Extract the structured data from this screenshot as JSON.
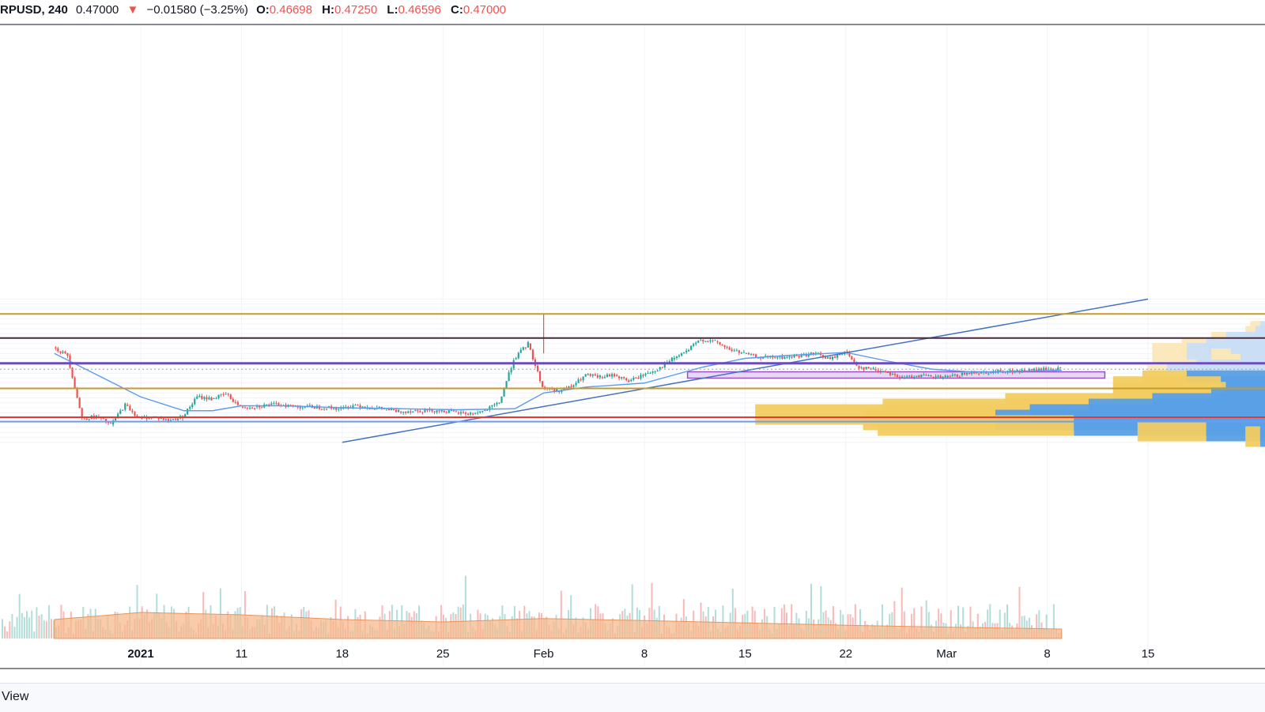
{
  "header": {
    "symbol": "RPUSD, 240",
    "last": "0.47000",
    "change_arrow": "▼",
    "change": "−0.01580 (−3.25%)",
    "open_label": "O:",
    "open": "0.46698",
    "high_label": "H:",
    "high": "0.47250",
    "low_label": "L:",
    "low": "0.46596",
    "close_label": "C:",
    "close": "0.47000"
  },
  "footer": {
    "text": "View"
  },
  "colors": {
    "up": "#26a69a",
    "down": "#ef5350",
    "ma": "#5b9cf0",
    "trendline": "#4472c4",
    "gold": "#c49a2c",
    "maroon": "#4a2a3a",
    "purple": "#6a4cc0",
    "red_line": "#e53935",
    "blue_line": "#6c9cf0"
  },
  "chart_data": {
    "type": "candlestick",
    "x_tick_labels": [
      "2021",
      "11",
      "18",
      "25",
      "Feb",
      "8",
      "15",
      "22",
      "Mar",
      "8",
      "15"
    ],
    "x_tick_dates": [
      "2021-01-04",
      "2021-01-11",
      "2021-01-18",
      "2021-01-25",
      "2021-02-01",
      "2021-02-08",
      "2021-02-15",
      "2021-02-22",
      "2021-03-01",
      "2021-03-08",
      "2021-03-15"
    ],
    "price_path": [
      [
        "2020-12-29",
        0.58
      ],
      [
        "2020-12-30",
        0.54
      ],
      [
        "2020-12-31",
        0.22
      ],
      [
        "2021-01-01",
        0.23
      ],
      [
        "2021-01-02",
        0.19
      ],
      [
        "2021-01-03",
        0.29
      ],
      [
        "2021-01-04",
        0.22
      ],
      [
        "2021-01-05",
        0.23
      ],
      [
        "2021-01-06",
        0.21
      ],
      [
        "2021-01-07",
        0.23
      ],
      [
        "2021-01-08",
        0.33
      ],
      [
        "2021-01-09",
        0.32
      ],
      [
        "2021-01-10",
        0.345
      ],
      [
        "2021-01-11",
        0.28
      ],
      [
        "2021-01-12",
        0.28
      ],
      [
        "2021-01-13",
        0.29
      ],
      [
        "2021-01-14",
        0.29
      ],
      [
        "2021-01-15",
        0.28
      ],
      [
        "2021-01-16",
        0.28
      ],
      [
        "2021-01-17",
        0.275
      ],
      [
        "2021-01-18",
        0.27
      ],
      [
        "2021-01-19",
        0.29
      ],
      [
        "2021-01-20",
        0.275
      ],
      [
        "2021-01-21",
        0.27
      ],
      [
        "2021-01-22",
        0.255
      ],
      [
        "2021-01-23",
        0.26
      ],
      [
        "2021-01-24",
        0.262
      ],
      [
        "2021-01-25",
        0.26
      ],
      [
        "2021-01-26",
        0.25
      ],
      [
        "2021-01-27",
        0.245
      ],
      [
        "2021-01-28",
        0.26
      ],
      [
        "2021-01-29",
        0.3
      ],
      [
        "2021-01-30",
        0.52
      ],
      [
        "2021-01-31",
        0.6
      ],
      [
        "2021-02-01",
        0.38
      ],
      [
        "2021-02-02",
        0.36
      ],
      [
        "2021-02-03",
        0.38
      ],
      [
        "2021-02-04",
        0.44
      ],
      [
        "2021-02-05",
        0.43
      ],
      [
        "2021-02-06",
        0.44
      ],
      [
        "2021-02-07",
        0.41
      ],
      [
        "2021-02-08",
        0.44
      ],
      [
        "2021-02-09",
        0.47
      ],
      [
        "2021-02-10",
        0.52
      ],
      [
        "2021-02-11",
        0.56
      ],
      [
        "2021-02-12",
        0.62
      ],
      [
        "2021-02-13",
        0.61
      ],
      [
        "2021-02-14",
        0.57
      ],
      [
        "2021-02-15",
        0.55
      ],
      [
        "2021-02-16",
        0.53
      ],
      [
        "2021-02-17",
        0.53
      ],
      [
        "2021-02-18",
        0.53
      ],
      [
        "2021-02-19",
        0.54
      ],
      [
        "2021-02-20",
        0.55
      ],
      [
        "2021-02-21",
        0.52
      ],
      [
        "2021-02-22",
        0.56
      ],
      [
        "2021-02-23",
        0.48
      ],
      [
        "2021-02-24",
        0.47
      ],
      [
        "2021-02-25",
        0.455
      ],
      [
        "2021-02-26",
        0.425
      ],
      [
        "2021-02-27",
        0.44
      ],
      [
        "2021-02-28",
        0.43
      ],
      [
        "2021-03-01",
        0.43
      ],
      [
        "2021-03-02",
        0.44
      ],
      [
        "2021-03-03",
        0.455
      ],
      [
        "2021-03-04",
        0.455
      ],
      [
        "2021-03-05",
        0.46
      ],
      [
        "2021-03-06",
        0.46
      ],
      [
        "2021-03-07",
        0.465
      ],
      [
        "2021-03-08",
        0.47
      ],
      [
        "2021-03-09",
        0.47
      ]
    ],
    "spike_high": [
      "2021-02-01",
      0.75
    ],
    "moving_average_path": [
      [
        "2020-12-29",
        0.55
      ],
      [
        "2021-01-01",
        0.44
      ],
      [
        "2021-01-04",
        0.33
      ],
      [
        "2021-01-07",
        0.26
      ],
      [
        "2021-01-09",
        0.26
      ],
      [
        "2021-01-11",
        0.285
      ],
      [
        "2021-01-14",
        0.285
      ],
      [
        "2021-01-18",
        0.275
      ],
      [
        "2021-01-22",
        0.27
      ],
      [
        "2021-01-26",
        0.265
      ],
      [
        "2021-01-30",
        0.27
      ],
      [
        "2021-02-01",
        0.35
      ],
      [
        "2021-02-04",
        0.38
      ],
      [
        "2021-02-08",
        0.4
      ],
      [
        "2021-02-12",
        0.48
      ],
      [
        "2021-02-15",
        0.525
      ],
      [
        "2021-02-18",
        0.54
      ],
      [
        "2021-02-22",
        0.555
      ],
      [
        "2021-02-25",
        0.51
      ],
      [
        "2021-02-28",
        0.47
      ],
      [
        "2021-03-03",
        0.455
      ],
      [
        "2021-03-06",
        0.46
      ],
      [
        "2021-03-09",
        0.465
      ]
    ],
    "volume_ma_path": [
      [
        "2020-12-29",
        0.4
      ],
      [
        "2021-01-04",
        0.55
      ],
      [
        "2021-01-11",
        0.5
      ],
      [
        "2021-01-18",
        0.4
      ],
      [
        "2021-01-25",
        0.35
      ],
      [
        "2021-02-01",
        0.42
      ],
      [
        "2021-02-08",
        0.38
      ],
      [
        "2021-02-15",
        0.33
      ],
      [
        "2021-02-22",
        0.28
      ],
      [
        "2021-03-01",
        0.24
      ],
      [
        "2021-03-09",
        0.2
      ]
    ],
    "trendline": {
      "start": [
        "2021-01-18",
        0.1
      ],
      "end": [
        "2021-03-15",
        0.825
      ]
    },
    "horizontal_levels": [
      {
        "price": 0.75,
        "color": "gold"
      },
      {
        "price": 0.628,
        "color": "maroon"
      },
      {
        "price": 0.5,
        "color": "purple"
      },
      {
        "price": 0.373,
        "color": "gold"
      },
      {
        "price": 0.227,
        "color": "red_line"
      },
      {
        "price": 0.205,
        "color": "blue_line"
      }
    ],
    "current_price": 0.47,
    "zone": {
      "from": "2021-02-11",
      "to": "2021-03-12",
      "top": 0.457,
      "bottom": 0.425
    },
    "volume_profile": [
      {
        "price": 0.66,
        "up": 0.02,
        "down": 0.01
      },
      {
        "price": 0.635,
        "up": 0.02,
        "down": 0.02
      },
      {
        "price": 0.605,
        "up": 0.03,
        "down": 0.08
      },
      {
        "price": 0.577,
        "up": 0.05,
        "down": 0.12
      },
      {
        "price": 0.549,
        "up": 0.07,
        "down": 0.16
      },
      {
        "price": 0.521,
        "up": 0.04,
        "down": 0.07
      },
      {
        "price": 0.493,
        "up": 0.03,
        "down": 0.05
      },
      {
        "price": 0.465,
        "up": 0.06,
        "down": 0.14
      },
      {
        "price": 0.437,
        "up": 0.04,
        "down": 0.2
      },
      {
        "price": 0.41,
        "up": 0.09,
        "down": 0.16
      },
      {
        "price": 0.38,
        "up": 0.22,
        "down": 0.09
      },
      {
        "price": 0.352,
        "up": 0.23,
        "down": 0.08
      },
      {
        "price": 0.324,
        "up": 0.2,
        "down": 0.11
      },
      {
        "price": 0.295,
        "up": 0.3,
        "down": 0.23
      },
      {
        "price": 0.267,
        "up": 0.42,
        "down": 0.36
      },
      {
        "price": 0.239,
        "up": 0.56,
        "down": 0.48
      },
      {
        "price": 0.211,
        "up": 0.27,
        "down": 0.55
      },
      {
        "price": 0.183,
        "up": 0.4,
        "down": 0.39
      },
      {
        "price": 0.155,
        "up": 0.14,
        "down": 0.12
      },
      {
        "price": 0.127,
        "up": 0.03,
        "down": 0.01
      }
    ]
  }
}
